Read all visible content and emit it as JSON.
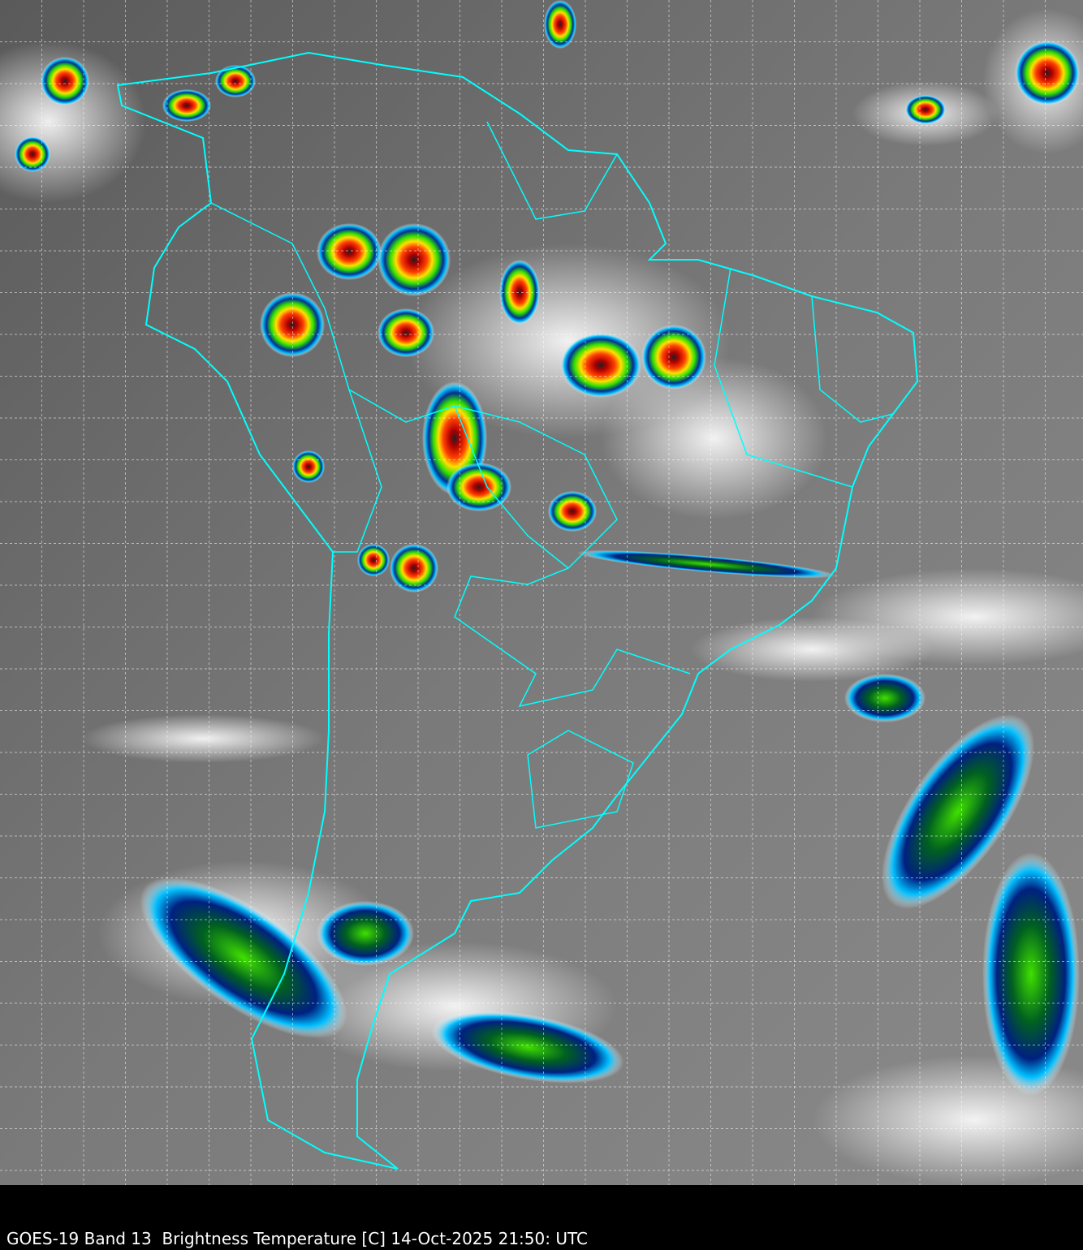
{
  "caption": "GOES-19 Band 13  Brightness Temperature [C] 14-Oct-2025 21:50: UTC",
  "colors": {
    "borders": "#00ffff",
    "grid": "#ffffff",
    "background": "#000000"
  }
}
